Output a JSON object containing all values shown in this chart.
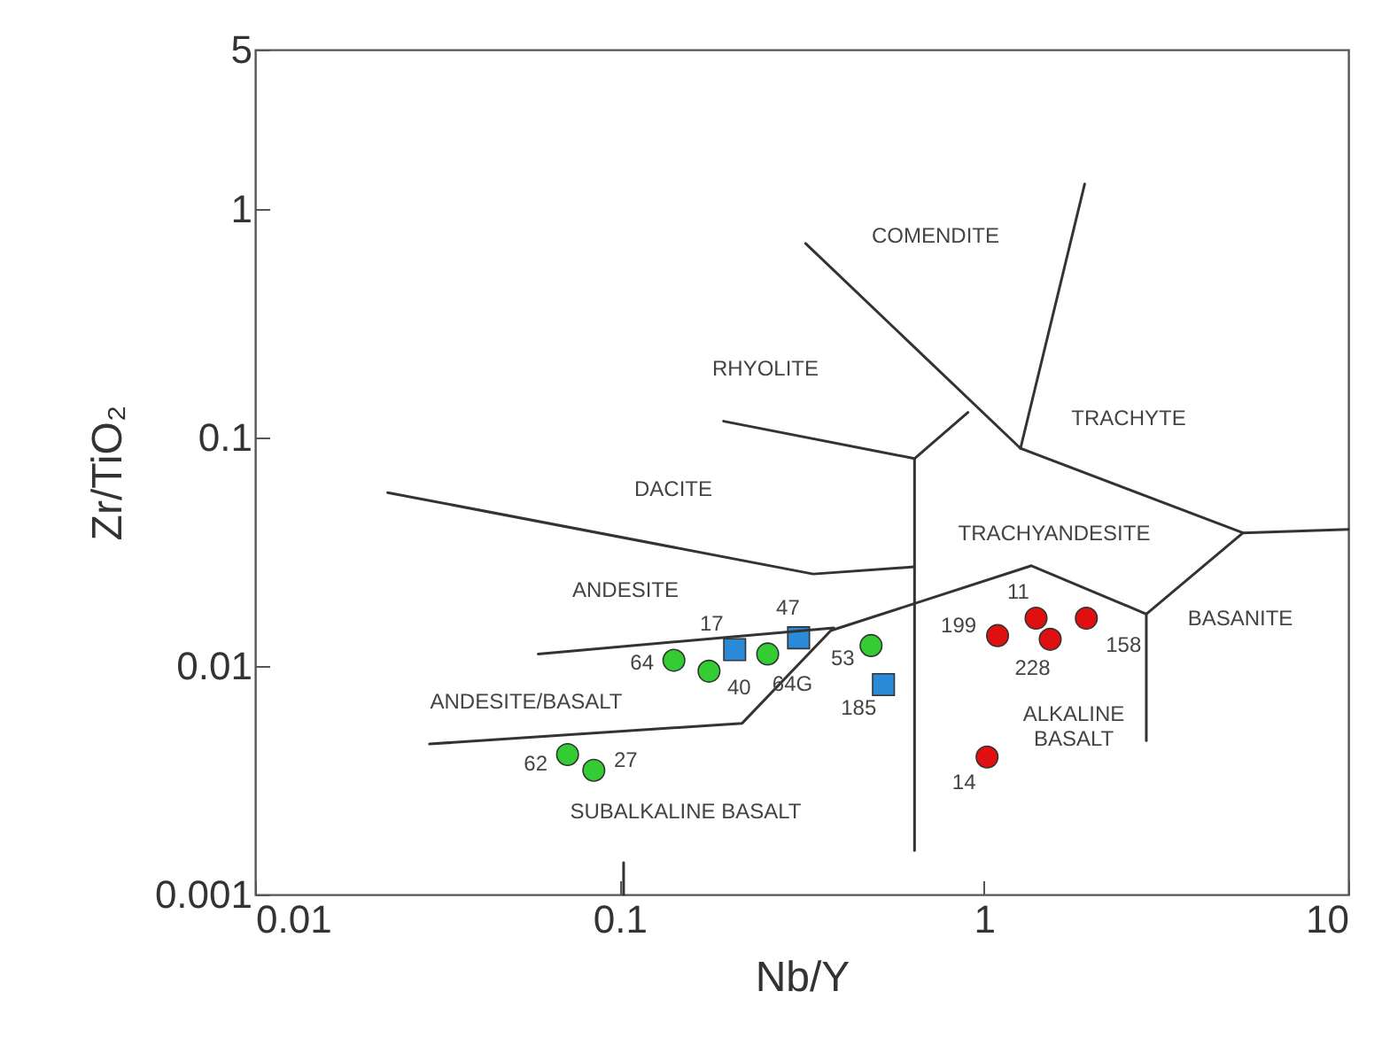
{
  "chart_data": {
    "type": "scatter",
    "xlabel": "Nb/Y",
    "ylabel": "Zr/TiO₂",
    "log": "xy",
    "grid": false,
    "marker": "circle",
    "xlim": [
      0.01,
      10
    ],
    "ylim": [
      0.001,
      5
    ],
    "xticks": [
      0.01,
      0.1,
      1,
      10
    ],
    "yticks": [
      0.001,
      0.01,
      0.1,
      1,
      5
    ],
    "series": [
      {
        "color": "#33cc33",
        "x": [
          0.141,
          0.176,
          0.255,
          0.49,
          0.072,
          0.085
        ],
        "values": [
          0.0106,
          0.0095,
          0.0113,
          0.0123,
          0.0041,
          0.0035
        ]
      },
      {
        "color": "#2a8ad8",
        "marker": "square",
        "x": [
          0.207,
          0.31,
          0.53
        ],
        "values": [
          0.0118,
          0.0133,
          0.0083
        ]
      },
      {
        "color": "#e01010",
        "x": [
          1.39,
          1.09,
          1.52,
          1.91,
          1.02
        ],
        "values": [
          0.0162,
          0.0136,
          0.0131,
          0.0162,
          0.004
        ]
      },
      {
        "type": "line",
        "marker": "none",
        "color": "#333333",
        "x": [
          0.0231,
          0.34,
          0.643
        ],
        "values": [
          0.0575,
          0.0253,
          0.0272
        ]
      },
      {
        "type": "line",
        "marker": "none",
        "color": "#333333",
        "x": [
          0.645,
          0.645
        ],
        "values": [
          0.081,
          0.00156
        ]
      },
      {
        "type": "line",
        "marker": "none",
        "color": "#333333",
        "x": [
          0.193,
          0.645,
          0.904
        ],
        "values": [
          0.118,
          0.081,
          0.129
        ]
      },
      {
        "type": "line",
        "marker": "none",
        "color": "#333333",
        "x": [
          0.324,
          1.26,
          1.89
        ],
        "values": [
          0.708,
          0.0898,
          1.29
        ]
      },
      {
        "type": "line",
        "marker": "none",
        "color": "#333333",
        "x": [
          1.26,
          5.14,
          10
        ],
        "values": [
          0.0898,
          0.0383,
          0.0397
        ]
      },
      {
        "type": "line",
        "marker": "none",
        "color": "#333333",
        "x": [
          5.14,
          2.79,
          1.35,
          0.38,
          0.217,
          0.0301
        ],
        "values": [
          0.0383,
          0.0169,
          0.0275,
          0.0143,
          0.00562,
          0.00456
        ]
      },
      {
        "type": "line",
        "marker": "none",
        "color": "#333333",
        "x": [
          0.0598,
          0.387
        ],
        "values": [
          0.0113,
          0.0147
        ]
      },
      {
        "type": "line",
        "marker": "none",
        "color": "#333333",
        "x": [
          2.79,
          2.79
        ],
        "values": [
          0.0169,
          0.00472
        ]
      },
      {
        "type": "line",
        "marker": "none",
        "color": "#333333",
        "x": [
          0.1026,
          0.1026
        ],
        "values": [
          0.00138,
          0.001
        ]
      }
    ],
    "annotations": [
      {
        "text": "64",
        "x": 0.141,
        "y": 0.0106
      },
      {
        "text": "40",
        "x": 0.176,
        "y": 0.0095
      },
      {
        "text": "64G",
        "x": 0.255,
        "y": 0.0113
      },
      {
        "text": "53",
        "x": 0.49,
        "y": 0.0123
      },
      {
        "text": "62",
        "x": 0.072,
        "y": 0.0041
      },
      {
        "text": "27",
        "x": 0.085,
        "y": 0.0035
      },
      {
        "text": "17",
        "x": 0.207,
        "y": 0.0118
      },
      {
        "text": "47",
        "x": 0.31,
        "y": 0.0133
      },
      {
        "text": "185",
        "x": 0.53,
        "y": 0.0083
      },
      {
        "text": "11",
        "x": 1.39,
        "y": 0.0162
      },
      {
        "text": "199",
        "x": 1.09,
        "y": 0.0136
      },
      {
        "text": "228",
        "x": 1.52,
        "y": 0.0131
      },
      {
        "text": "158",
        "x": 1.91,
        "y": 0.0162
      },
      {
        "text": "14",
        "x": 1.02,
        "y": 0.004
      },
      "COMENDITE",
      "RHYOLITE",
      "TRACHYTE",
      "DACITE",
      "TRACHYANDESITE",
      "ANDESITE",
      "ANDESITE/BASALT",
      "SUBALKALINE BASALT",
      "ALKALINE\nBASALT",
      "BASANITE"
    ]
  }
}
